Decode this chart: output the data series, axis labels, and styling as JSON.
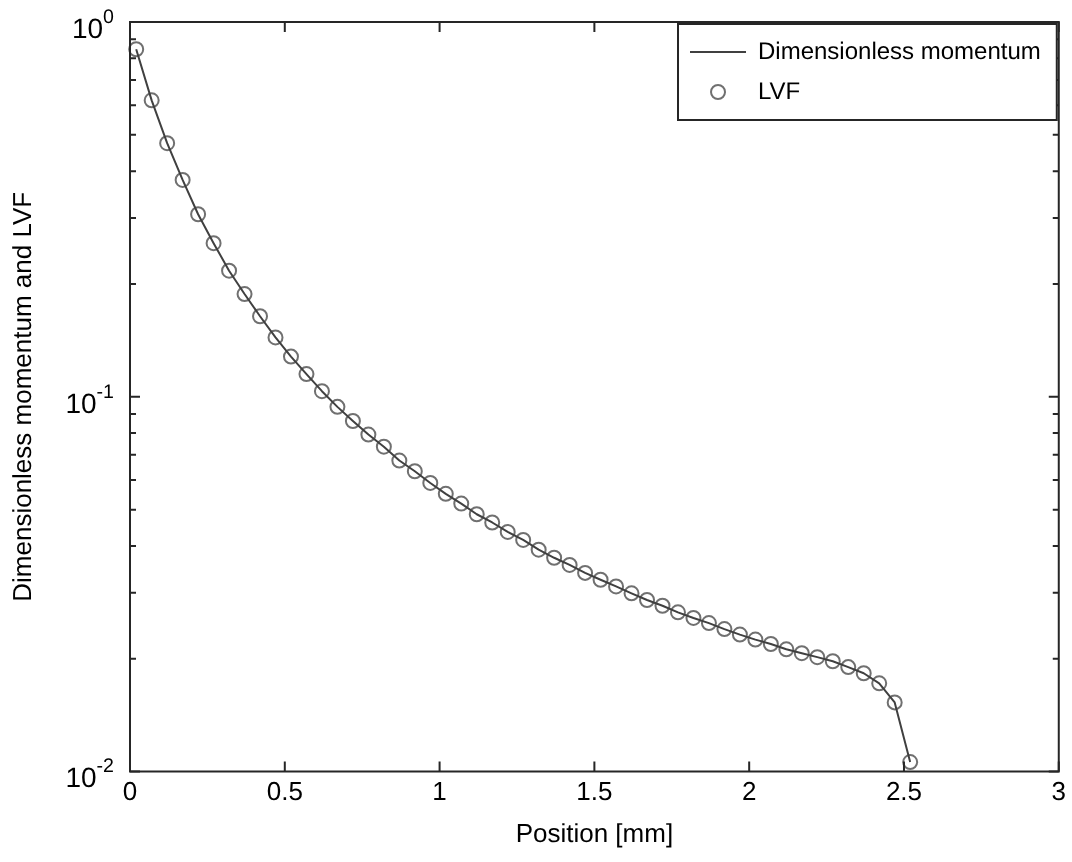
{
  "chart_data": {
    "type": "line",
    "xlabel": "Position [mm]",
    "ylabel": "Dimensionless momentum and LVF",
    "log": "y",
    "grid": false,
    "legend": "top right",
    "x": [
      0.02,
      0.07,
      0.12,
      0.17,
      0.22,
      0.27,
      0.32,
      0.37,
      0.42,
      0.47,
      0.52,
      0.57,
      0.62,
      0.67,
      0.72,
      0.77,
      0.82,
      0.87,
      0.92,
      0.97,
      1.02,
      1.07,
      1.12,
      1.17,
      1.22,
      1.27,
      1.32,
      1.37,
      1.42,
      1.47,
      1.52,
      1.57,
      1.62,
      1.67,
      1.72,
      1.77,
      1.82,
      1.87,
      1.92,
      1.97,
      2.02,
      2.07,
      2.12,
      2.17,
      2.22,
      2.27,
      2.32,
      2.37,
      2.42,
      2.47,
      2.52
    ],
    "xlim": [
      0,
      3
    ],
    "xticks": [
      0,
      0.5,
      1,
      1.5,
      2,
      2.5,
      3
    ],
    "ylim": [
      0.01,
      1
    ],
    "yticks": [
      {
        "value": 0.01,
        "label": "10$^{-2}$"
      },
      {
        "value": 0.02,
        "label": null
      },
      {
        "value": 0.03,
        "label": null
      },
      {
        "value": 0.04,
        "label": null
      },
      {
        "value": 0.05,
        "label": null
      },
      {
        "value": 0.06,
        "label": null
      },
      {
        "value": 0.07,
        "label": null
      },
      {
        "value": 0.08,
        "label": null
      },
      {
        "value": 0.09,
        "label": null
      },
      {
        "value": 0.1,
        "label": "10$^{-1}$"
      },
      {
        "value": 0.2,
        "label": null
      },
      {
        "value": 0.3,
        "label": null
      },
      {
        "value": 0.4,
        "label": null
      },
      {
        "value": 0.5,
        "label": null
      },
      {
        "value": 0.6,
        "label": null
      },
      {
        "value": 0.7,
        "label": null
      },
      {
        "value": 0.8,
        "label": null
      },
      {
        "value": 0.9,
        "label": null
      },
      {
        "value": 1,
        "label": "10$^{0}$"
      }
    ],
    "series": [
      {
        "name": "Dimensionless momentum",
        "type": "line",
        "marker": "none",
        "line_style": "solid",
        "color": "#404040",
        "values": [
          0.846,
          0.618,
          0.475,
          0.379,
          0.307,
          0.257,
          0.217,
          0.188,
          0.164,
          0.144,
          0.128,
          0.115,
          0.1035,
          0.094,
          0.0862,
          0.0793,
          0.0736,
          0.0676,
          0.0633,
          0.0589,
          0.0551,
          0.0519,
          0.0486,
          0.0462,
          0.0436,
          0.0415,
          0.0391,
          0.0372,
          0.0356,
          0.0339,
          0.0325,
          0.0312,
          0.0299,
          0.0287,
          0.0277,
          0.0266,
          0.0257,
          0.0249,
          0.024,
          0.0232,
          0.0225,
          0.0219,
          0.0212,
          0.0207,
          0.0202,
          0.0197,
          0.019,
          0.0183,
          0.0172,
          0.0153,
          0.0106
        ]
      },
      {
        "name": "LVF",
        "type": "scatter",
        "marker": "circle",
        "color": "#707070",
        "values": [
          0.846,
          0.618,
          0.475,
          0.379,
          0.307,
          0.257,
          0.217,
          0.188,
          0.164,
          0.144,
          0.128,
          0.115,
          0.1035,
          0.094,
          0.0862,
          0.0793,
          0.0736,
          0.0676,
          0.0633,
          0.0589,
          0.0551,
          0.0519,
          0.0486,
          0.0462,
          0.0436,
          0.0415,
          0.0391,
          0.0372,
          0.0356,
          0.0339,
          0.0325,
          0.0312,
          0.0299,
          0.0287,
          0.0277,
          0.0266,
          0.0257,
          0.0249,
          0.024,
          0.0232,
          0.0225,
          0.0219,
          0.0212,
          0.0207,
          0.0202,
          0.0197,
          0.019,
          0.0183,
          0.0172,
          0.0153,
          0.0106
        ]
      }
    ]
  }
}
